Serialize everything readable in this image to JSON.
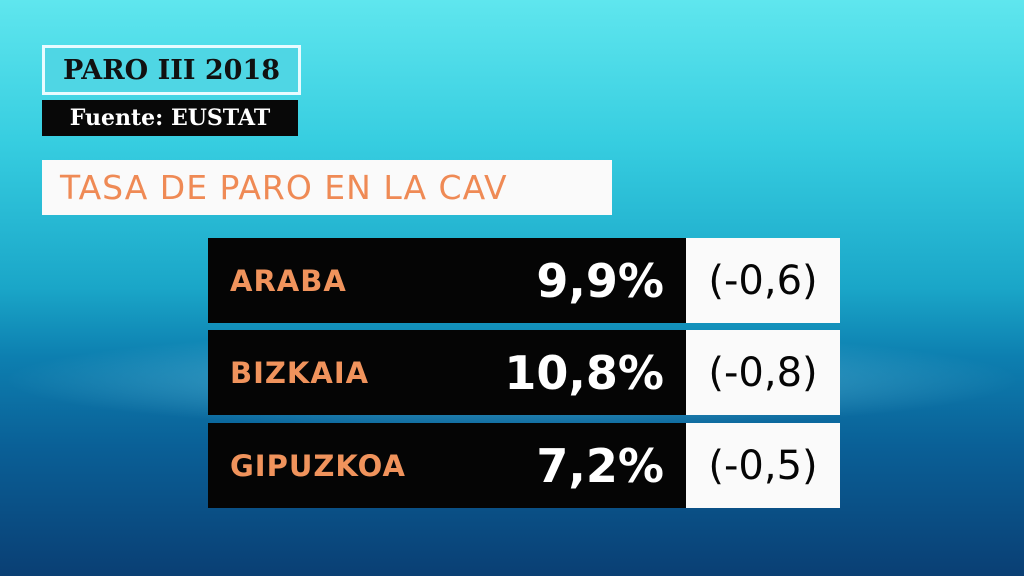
{
  "header": {
    "title": "PARO III 2018",
    "source": "Fuente: EUSTAT"
  },
  "heading": "TASA DE PARO EN LA CAV",
  "table": {
    "rows": [
      [
        "ARABA",
        "9,9%",
        "(-0,6)"
      ],
      [
        "BIZKAIA",
        "10,8%",
        "(-0,8)"
      ],
      [
        "GIPUZKOA",
        "7,2%",
        "(-0,5)"
      ]
    ]
  }
}
